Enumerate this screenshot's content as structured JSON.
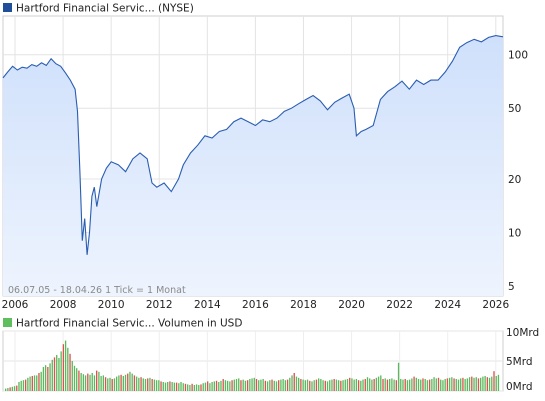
{
  "chart_data": [
    {
      "type": "area",
      "legend": "Hartford Financial Servic... (NYSE)",
      "legend_color": "#1f4e9b",
      "line_color": "#2a5db0",
      "fill_top": "#cfe0fb",
      "fill_bottom": "#eef4fe",
      "yscale": "log",
      "ylim": [
        4.4,
        165
      ],
      "y_ticks": [
        {
          "value": 5,
          "label": "5"
        },
        {
          "value": 10,
          "label": "10"
        },
        {
          "value": 20,
          "label": "20"
        },
        {
          "value": 50,
          "label": "50"
        },
        {
          "value": 100,
          "label": "100"
        }
      ],
      "xlim": [
        2005.5,
        2026.3
      ],
      "x_ticks": [
        {
          "value": 2006,
          "label": "2006"
        },
        {
          "value": 2008,
          "label": "2008"
        },
        {
          "value": 2010,
          "label": "2010"
        },
        {
          "value": 2012,
          "label": "2012"
        },
        {
          "value": 2014,
          "label": "2014"
        },
        {
          "value": 2016,
          "label": "2016"
        },
        {
          "value": 2018,
          "label": "2018"
        },
        {
          "value": 2020,
          "label": "2020"
        },
        {
          "value": 2022,
          "label": "2022"
        },
        {
          "value": 2024,
          "label": "2024"
        },
        {
          "value": 2026,
          "label": "2026"
        }
      ],
      "footnote": "06.07.05 - 18.04.26   1 Tick = 1 Monat",
      "grid": true,
      "x": [
        2005.5,
        2005.7,
        2005.9,
        2006.1,
        2006.3,
        2006.5,
        2006.7,
        2006.9,
        2007.1,
        2007.3,
        2007.5,
        2007.7,
        2007.9,
        2008.1,
        2008.3,
        2008.5,
        2008.6,
        2008.7,
        2008.8,
        2008.9,
        2009.0,
        2009.1,
        2009.2,
        2009.3,
        2009.4,
        2009.6,
        2009.8,
        2010.0,
        2010.3,
        2010.6,
        2010.9,
        2011.2,
        2011.5,
        2011.7,
        2011.9,
        2012.2,
        2012.5,
        2012.8,
        2013.0,
        2013.3,
        2013.6,
        2013.9,
        2014.2,
        2014.5,
        2014.8,
        2015.1,
        2015.4,
        2015.7,
        2016.0,
        2016.3,
        2016.6,
        2016.9,
        2017.2,
        2017.5,
        2017.8,
        2018.1,
        2018.4,
        2018.7,
        2019.0,
        2019.3,
        2019.6,
        2019.9,
        2020.1,
        2020.2,
        2020.4,
        2020.6,
        2020.9,
        2021.2,
        2021.5,
        2021.8,
        2022.1,
        2022.4,
        2022.7,
        2023.0,
        2023.3,
        2023.6,
        2023.9,
        2024.2,
        2024.5,
        2024.8,
        2025.1,
        2025.4,
        2025.7,
        2026.0,
        2026.3
      ],
      "values": [
        74,
        80,
        86,
        82,
        85,
        84,
        88,
        86,
        90,
        87,
        95,
        89,
        86,
        79,
        72,
        64,
        48,
        22,
        9,
        12,
        7.5,
        10,
        16,
        18,
        14,
        20,
        23,
        25,
        24,
        22,
        26,
        28,
        26,
        19,
        18,
        19,
        17,
        20,
        24,
        28,
        31,
        35,
        34,
        37,
        38,
        42,
        44,
        42,
        40,
        43,
        42,
        44,
        48,
        50,
        53,
        56,
        59,
        55,
        49,
        54,
        57,
        60,
        50,
        35,
        37,
        38,
        40,
        56,
        62,
        66,
        71,
        64,
        72,
        68,
        72,
        72,
        80,
        92,
        110,
        117,
        122,
        118,
        125,
        128,
        126
      ]
    },
    {
      "type": "bar",
      "legend": "Hartford Financial Servic... Volumen in USD",
      "legend_color": "#5fbf5f",
      "up_color": "#5cb85c",
      "down_color": "#d9534f",
      "ylim": [
        0,
        10
      ],
      "y_ticks": [
        {
          "value": 0,
          "label": "0Mrd"
        },
        {
          "value": 5,
          "label": "5Mrd"
        },
        {
          "value": 10,
          "label": "10Mrd"
        }
      ],
      "values": [
        0.4,
        0.5,
        0.6,
        0.7,
        0.8,
        0.9,
        1.5,
        1.7,
        1.8,
        1.9,
        2.2,
        2.4,
        2.5,
        2.6,
        2.6,
        3.0,
        3.2,
        4.0,
        4.3,
        4.0,
        4.6,
        5.2,
        5.6,
        6.0,
        5.5,
        6.6,
        7.8,
        8.4,
        7.2,
        6.2,
        5.0,
        4.2,
        3.8,
        3.4,
        3.0,
        2.8,
        2.6,
        2.9,
        2.7,
        3.0,
        2.6,
        3.4,
        3.2,
        2.5,
        2.6,
        2.3,
        2.1,
        2.2,
        2.0,
        2.1,
        2.4,
        2.6,
        2.7,
        2.5,
        2.7,
        2.9,
        3.2,
        2.9,
        2.6,
        2.4,
        2.2,
        2.3,
        2.1,
        2.0,
        2.1,
        2.2,
        2.0,
        1.9,
        1.8,
        1.8,
        1.6,
        1.5,
        1.4,
        1.5,
        1.6,
        1.5,
        1.4,
        1.4,
        1.3,
        1.5,
        1.3,
        1.2,
        1.1,
        1.0,
        1.2,
        1.0,
        1.1,
        1.0,
        1.1,
        1.3,
        1.4,
        1.6,
        1.3,
        1.5,
        1.6,
        1.7,
        1.5,
        1.7,
        2.0,
        1.8,
        1.7,
        1.6,
        1.8,
        1.9,
        2.0,
        2.1,
        1.8,
        1.9,
        1.7,
        1.8,
        2.0,
        2.1,
        2.2,
        2.0,
        1.8,
        1.9,
        2.0,
        1.7,
        1.6,
        1.8,
        1.9,
        1.7,
        1.6,
        1.8,
        1.9,
        2.0,
        1.8,
        1.9,
        2.2,
        2.6,
        3.0,
        2.4,
        2.2,
        2.0,
        1.9,
        1.8,
        1.9,
        1.7,
        1.6,
        1.8,
        1.9,
        2.1,
        2.0,
        1.8,
        1.7,
        1.6,
        1.8,
        1.9,
        2.0,
        1.9,
        1.8,
        1.7,
        1.8,
        1.9,
        2.0,
        2.2,
        2.1,
        1.9,
        2.0,
        1.8,
        1.7,
        1.9,
        2.0,
        2.3,
        2.1,
        1.9,
        2.0,
        2.2,
        2.4,
        2.6,
        2.0,
        2.1,
        1.9,
        2.0,
        2.1,
        1.9,
        1.8,
        4.7,
        2.0,
        1.9,
        2.0,
        1.8,
        1.9,
        2.1,
        2.4,
        2.2,
        2.0,
        1.9,
        2.1,
        2.0,
        1.8,
        1.9,
        2.0,
        2.3,
        2.1,
        2.2,
        1.9,
        1.8,
        2.0,
        2.1,
        2.2,
        2.3,
        2.1,
        2.0,
        1.9,
        2.1,
        2.2,
        2.0,
        2.1,
        2.3,
        2.4,
        2.2,
        2.3,
        2.1,
        2.2,
        2.4,
        2.5,
        2.3,
        2.2,
        2.4,
        3.3,
        2.5,
        2.7
      ],
      "down": [
        2,
        5,
        9,
        12,
        15,
        19,
        22,
        26,
        29,
        33,
        37,
        41,
        45,
        48,
        52,
        55,
        58,
        61,
        64,
        66,
        70,
        74,
        77,
        81,
        84,
        88,
        91,
        95,
        98,
        102,
        106,
        109,
        113,
        117,
        120,
        123,
        127,
        130,
        133,
        137,
        140,
        144,
        148,
        151,
        155,
        159,
        162,
        166,
        170,
        172,
        176,
        180,
        184,
        188,
        191,
        195,
        199,
        202,
        206,
        210,
        213,
        217,
        220,
        224,
        227
      ]
    }
  ]
}
